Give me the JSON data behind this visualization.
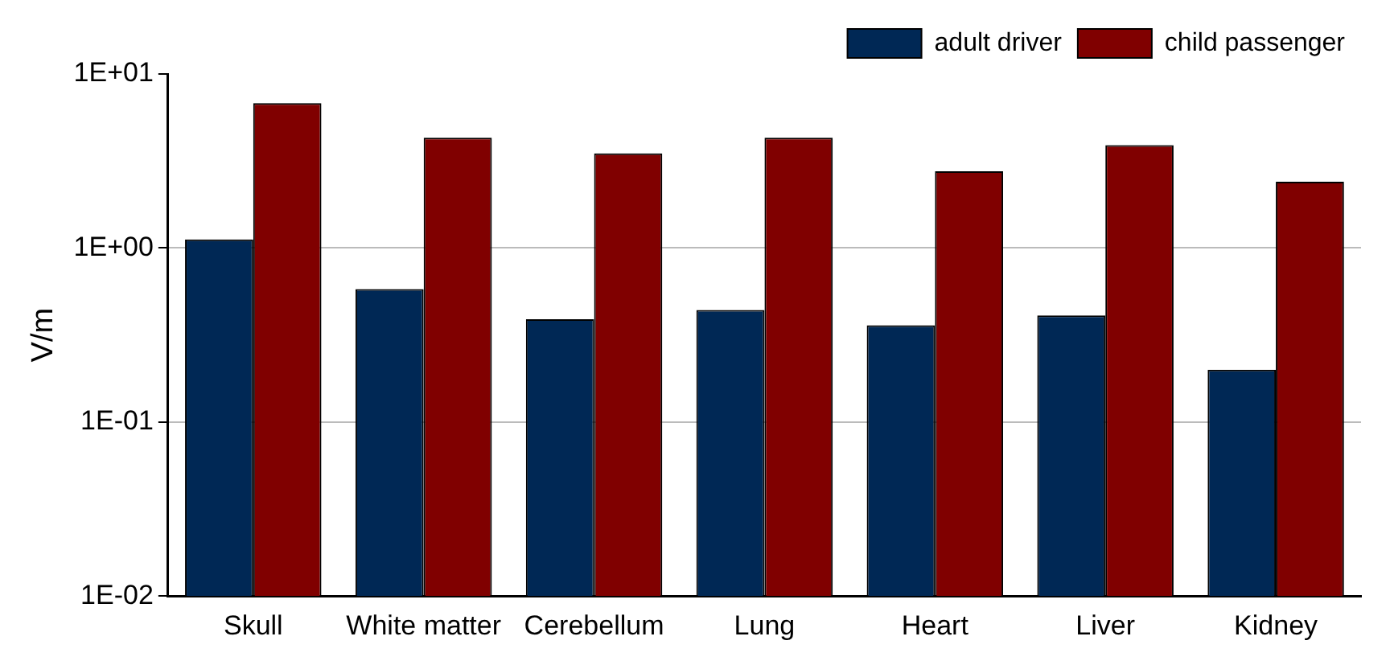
{
  "chart_data": {
    "type": "bar",
    "ylabel": "V/m",
    "categories": [
      "Skull",
      "White matter",
      "Cerebellum",
      "Lung",
      "Heart",
      "Liver",
      "Kidney"
    ],
    "series": [
      {
        "name": "adult driver",
        "color": "#002855",
        "values": [
          1.12,
          0.58,
          0.39,
          0.44,
          0.36,
          0.41,
          0.2
        ]
      },
      {
        "name": "child passenger",
        "color": "#800000",
        "values": [
          6.8,
          4.3,
          3.5,
          4.3,
          2.76,
          3.9,
          2.4
        ]
      }
    ],
    "log": "y",
    "ylim": [
      0.01,
      10
    ],
    "yticks": [
      {
        "value": 0.01,
        "label": "1E-02"
      },
      {
        "value": 0.1,
        "label": "1E-01"
      },
      {
        "value": 1,
        "label": "1E+00"
      },
      {
        "value": 10,
        "label": "1E+01"
      }
    ],
    "grid": "y",
    "legend": "top right"
  }
}
